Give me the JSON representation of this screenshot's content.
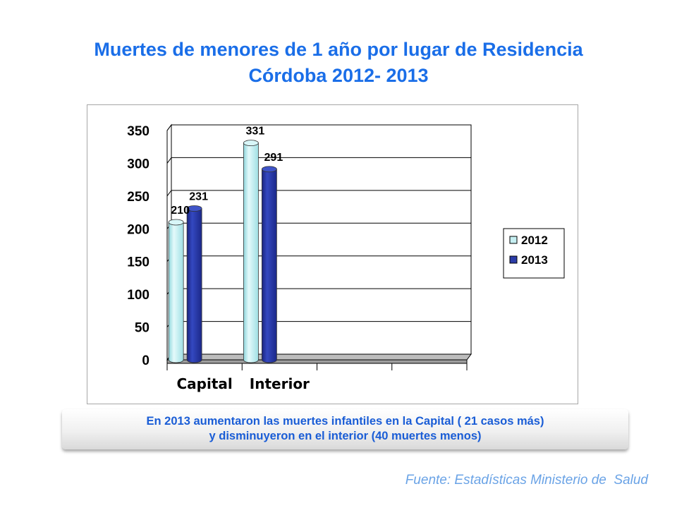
{
  "title": {
    "line1": "Muertes de menores de 1 año por lugar de Residencia",
    "line2": "Córdoba 2012- 2013"
  },
  "chart_data": {
    "type": "bar",
    "categories": [
      "Capital",
      "Interior",
      "",
      ""
    ],
    "series": [
      {
        "name": "2012",
        "values": [
          210,
          331,
          null,
          null
        ],
        "color": "#c6eff2"
      },
      {
        "name": "2013",
        "values": [
          231,
          291,
          null,
          null
        ],
        "color": "#2b3ca8"
      }
    ],
    "ylim": [
      0,
      350
    ],
    "yticks": [
      0,
      50,
      100,
      150,
      200,
      250,
      300,
      350
    ],
    "data_labels": true,
    "grid": true,
    "legend": "right",
    "style": "3d-cylinder"
  },
  "callout": {
    "line1": "En 2013 aumentaron las muertes infantiles en la  Capital ( 21 casos más)",
    "line2": "y disminuyeron en el interior (40 muertes menos)"
  },
  "source": "Fuente: Estadísticas Ministerio de  Salud"
}
